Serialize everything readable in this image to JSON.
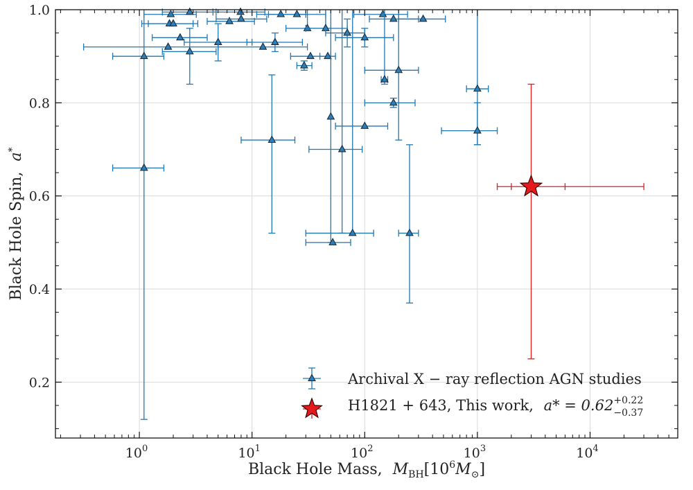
{
  "chart_data": {
    "type": "scatter",
    "xscale": "log",
    "xlim": [
      0.18,
      60000
    ],
    "ylim": [
      0.08,
      1.0
    ],
    "grid": true,
    "legend_position": "bottom-right",
    "xlabel_text": "Black Hole Mass,",
    "xlabel_math": "M_BH[10^6 M_⊙]",
    "ylabel_text": "Black Hole Spin,",
    "ylabel_math": "a*",
    "x_ticks": [
      {
        "value": 1,
        "label": "10",
        "exp": "0"
      },
      {
        "value": 10,
        "label": "10",
        "exp": "1"
      },
      {
        "value": 100,
        "label": "10",
        "exp": "2"
      },
      {
        "value": 1000,
        "label": "10",
        "exp": "3"
      },
      {
        "value": 10000,
        "label": "10",
        "exp": "4"
      }
    ],
    "y_ticks": [
      {
        "value": 0.2,
        "label": "0.2"
      },
      {
        "value": 0.4,
        "label": "0.4"
      },
      {
        "value": 0.6,
        "label": "0.6"
      },
      {
        "value": 0.8,
        "label": "0.8"
      },
      {
        "value": 1.0,
        "label": "1.0"
      }
    ],
    "colors": {
      "archival": "#1f77b4",
      "archival_marker": "#2c7fb8",
      "this_work": "#e41a1c",
      "grid": "#d9d9d9"
    },
    "series": [
      {
        "name": "Archival X − ray reflection AGN studies",
        "marker": "triangle",
        "points": [
          {
            "x": 1.1,
            "y": 0.66,
            "xlo": 0.58,
            "xhi": 1.65,
            "ylo": 0.12,
            "yhi": 1.0
          },
          {
            "x": 1.1,
            "y": 0.9,
            "xlo": 0.58,
            "xhi": 1.65,
            "ylo": 0.9,
            "yhi": 0.9
          },
          {
            "x": 1.8,
            "y": 0.92,
            "xlo": 0.32,
            "xhi": 5.0,
            "ylo": 0.92,
            "yhi": 0.92
          },
          {
            "x": 1.85,
            "y": 0.97,
            "xlo": 1.05,
            "xhi": 3.0,
            "ylo": 0.97,
            "yhi": 0.97
          },
          {
            "x": 1.9,
            "y": 0.99,
            "xlo": 1.1,
            "xhi": 3.2,
            "ylo": 0.99,
            "yhi": 0.99
          },
          {
            "x": 2.0,
            "y": 0.97,
            "xlo": 1.2,
            "xhi": 3.3,
            "ylo": 0.97,
            "yhi": 0.97
          },
          {
            "x": 2.3,
            "y": 0.94,
            "xlo": 1.3,
            "xhi": 4.0,
            "ylo": 0.94,
            "yhi": 0.94
          },
          {
            "x": 2.8,
            "y": 0.91,
            "xlo": 1.6,
            "xhi": 4.8,
            "ylo": 0.84,
            "yhi": 0.96
          },
          {
            "x": 2.8,
            "y": 0.995,
            "xlo": 1.6,
            "xhi": 4.8,
            "ylo": 0.995,
            "yhi": 0.995
          },
          {
            "x": 5.0,
            "y": 0.93,
            "xlo": 2.5,
            "xhi": 10.0,
            "ylo": 0.89,
            "yhi": 0.97
          },
          {
            "x": 6.3,
            "y": 0.975,
            "xlo": 4.0,
            "xhi": 10.5,
            "ylo": 0.975,
            "yhi": 0.975
          },
          {
            "x": 7.9,
            "y": 0.995,
            "xlo": 4.5,
            "xhi": 13.0,
            "ylo": 0.995,
            "yhi": 0.995
          },
          {
            "x": 8.0,
            "y": 0.98,
            "xlo": 4.8,
            "xhi": 13.5,
            "ylo": 0.98,
            "yhi": 0.98
          },
          {
            "x": 12.5,
            "y": 0.92,
            "xlo": 5.0,
            "xhi": 31.0,
            "ylo": 0.92,
            "yhi": 0.92
          },
          {
            "x": 15.0,
            "y": 0.72,
            "xlo": 8.0,
            "xhi": 24.0,
            "ylo": 0.52,
            "yhi": 0.86
          },
          {
            "x": 16.0,
            "y": 0.93,
            "xlo": 9.0,
            "xhi": 28.0,
            "ylo": 0.91,
            "yhi": 0.95
          },
          {
            "x": 18.0,
            "y": 0.99,
            "xlo": 11.0,
            "xhi": 30.0,
            "ylo": 0.99,
            "yhi": 0.99
          },
          {
            "x": 25.0,
            "y": 0.99,
            "xlo": 14.0,
            "xhi": 45.0,
            "ylo": 0.99,
            "yhi": 0.99
          },
          {
            "x": 29.0,
            "y": 0.88,
            "xlo": 25.0,
            "xhi": 34.0,
            "ylo": 0.87,
            "yhi": 0.89
          },
          {
            "x": 31.0,
            "y": 0.96,
            "xlo": 20.0,
            "xhi": 45.0,
            "ylo": 0.96,
            "yhi": 1.0
          },
          {
            "x": 33.0,
            "y": 0.9,
            "xlo": 22.0,
            "xhi": 50.0,
            "ylo": 0.9,
            "yhi": 0.9
          },
          {
            "x": 45.0,
            "y": 0.96,
            "xlo": 30.0,
            "xhi": 70.0,
            "ylo": 0.96,
            "yhi": 1.0
          },
          {
            "x": 47.0,
            "y": 0.9,
            "xlo": 40.0,
            "xhi": 55.0,
            "ylo": 0.9,
            "yhi": 0.9
          },
          {
            "x": 50.0,
            "y": 0.77,
            "xlo": 50.0,
            "xhi": 50.0,
            "ylo": 0.5,
            "yhi": 1.0
          },
          {
            "x": 52.0,
            "y": 0.5,
            "xlo": 30.0,
            "xhi": 75.0,
            "ylo": 0.5,
            "yhi": 0.5
          },
          {
            "x": 63.0,
            "y": 0.7,
            "xlo": 32.0,
            "xhi": 95.0,
            "ylo": 0.52,
            "yhi": 1.0
          },
          {
            "x": 70.0,
            "y": 0.95,
            "xlo": 45.0,
            "xhi": 100.0,
            "ylo": 0.92,
            "yhi": 0.98
          },
          {
            "x": 78.0,
            "y": 0.52,
            "xlo": 30.0,
            "xhi": 120.0,
            "ylo": 0.52,
            "yhi": 1.0
          },
          {
            "x": 100.0,
            "y": 0.75,
            "xlo": 55.0,
            "xhi": 160.0,
            "ylo": 0.75,
            "yhi": 0.75
          },
          {
            "x": 100.0,
            "y": 0.94,
            "xlo": 55.0,
            "xhi": 180.0,
            "ylo": 0.92,
            "yhi": 0.96
          },
          {
            "x": 145.0,
            "y": 0.99,
            "xlo": 80.0,
            "xhi": 240.0,
            "ylo": 0.99,
            "yhi": 0.99
          },
          {
            "x": 150.0,
            "y": 0.85,
            "xlo": 140.0,
            "xhi": 160.0,
            "ylo": 0.84,
            "yhi": 1.0
          },
          {
            "x": 180.0,
            "y": 0.98,
            "xlo": 110.0,
            "xhi": 300.0,
            "ylo": 0.98,
            "yhi": 0.98
          },
          {
            "x": 180.0,
            "y": 0.8,
            "xlo": 100.0,
            "xhi": 280.0,
            "ylo": 0.79,
            "yhi": 0.81
          },
          {
            "x": 200.0,
            "y": 0.87,
            "xlo": 100.0,
            "xhi": 300.0,
            "ylo": 0.72,
            "yhi": 1.0
          },
          {
            "x": 250.0,
            "y": 0.52,
            "xlo": 200.0,
            "xhi": 300.0,
            "ylo": 0.37,
            "yhi": 0.71
          },
          {
            "x": 330.0,
            "y": 0.98,
            "xlo": 200.0,
            "xhi": 520.0,
            "ylo": 0.98,
            "yhi": 0.98
          },
          {
            "x": 1000.0,
            "y": 0.83,
            "xlo": 800.0,
            "xhi": 1250.0,
            "ylo": 0.71,
            "yhi": 1.0
          },
          {
            "x": 1000.0,
            "y": 0.74,
            "xlo": 480.0,
            "xhi": 1500.0,
            "ylo": 0.71,
            "yhi": 0.8
          }
        ]
      },
      {
        "name": "H1821 + 643, This work,",
        "name_math": "a* = 0.62",
        "sup": "+0.22",
        "sub": "−0.37",
        "marker": "star",
        "points": [
          {
            "x": 3000.0,
            "y": 0.62,
            "xlo": 1500.0,
            "xhi": 30000.0,
            "ylo": 0.25,
            "yhi": 0.84,
            "xinner_lo": 2000.0,
            "xinner_hi": 6000.0
          }
        ]
      }
    ]
  }
}
